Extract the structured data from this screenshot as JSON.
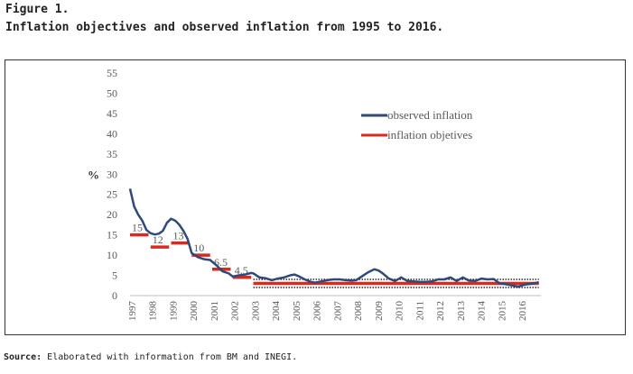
{
  "figure": {
    "label": "Figure 1.",
    "title": "Inflation objectives and observed inflation from 1995 to 2016.",
    "source_label": "Source:",
    "source_text": " Elaborated with information from BM and INEGI."
  },
  "chart_data": {
    "type": "line",
    "ylabel": "%",
    "ylim": [
      0,
      55
    ],
    "yticks": [
      0,
      5,
      10,
      15,
      20,
      25,
      30,
      35,
      40,
      45,
      50,
      55
    ],
    "xticks": [
      "1997",
      "1998",
      "1999",
      "2000",
      "2001",
      "2002",
      "2003",
      "2004",
      "2005",
      "2006",
      "2007",
      "2008",
      "2009",
      "2010",
      "2011",
      "2012",
      "2013",
      "2014",
      "2015",
      "2016"
    ],
    "legend": [
      "observed inflation",
      "inflation objetives"
    ],
    "legend_position": "top-right",
    "colors": {
      "observed": "#2e4a7d",
      "objectives": "#d62b1e",
      "band": "#000000"
    },
    "observed_inflation": {
      "name": "observed inflation",
      "x": [
        1997.0,
        1997.2,
        1997.4,
        1997.6,
        1997.8,
        1998.0,
        1998.2,
        1998.4,
        1998.6,
        1998.8,
        1999.0,
        1999.2,
        1999.4,
        1999.6,
        1999.8,
        2000.0,
        2000.3,
        2000.6,
        2000.9,
        2001.2,
        2001.5,
        2001.8,
        2002.0,
        2002.3,
        2002.6,
        2002.9,
        2003.0,
        2003.3,
        2003.6,
        2003.9,
        2004.2,
        2004.5,
        2004.8,
        2005.0,
        2005.2,
        2005.5,
        2005.8,
        2006.0,
        2006.3,
        2006.6,
        2006.9,
        2007.2,
        2007.5,
        2007.8,
        2008.0,
        2008.3,
        2008.6,
        2008.9,
        2009.1,
        2009.3,
        2009.6,
        2009.9,
        2010.2,
        2010.5,
        2010.8,
        2011.1,
        2011.4,
        2011.7,
        2012.0,
        2012.3,
        2012.6,
        2012.9,
        2013.2,
        2013.5,
        2013.8,
        2014.1,
        2014.4,
        2014.7,
        2015.0,
        2015.3,
        2015.6,
        2015.9,
        2016.2,
        2016.5,
        2016.9
      ],
      "values": [
        26.4,
        22.0,
        20.0,
        18.5,
        16.2,
        15.4,
        15.1,
        15.3,
        16.0,
        18.0,
        19.0,
        18.5,
        17.5,
        16.0,
        14.0,
        10.5,
        9.5,
        9.0,
        8.8,
        7.5,
        6.0,
        5.5,
        4.7,
        5.0,
        5.2,
        5.6,
        5.5,
        4.5,
        4.3,
        3.8,
        4.2,
        4.5,
        5.0,
        5.2,
        4.8,
        4.0,
        3.4,
        3.2,
        3.5,
        3.8,
        4.0,
        4.0,
        3.8,
        3.7,
        3.8,
        4.8,
        5.8,
        6.5,
        6.2,
        5.5,
        4.2,
        3.6,
        4.5,
        3.6,
        3.5,
        3.4,
        3.4,
        3.5,
        4.0,
        4.0,
        4.5,
        3.6,
        4.5,
        3.7,
        3.6,
        4.2,
        4.0,
        4.1,
        3.0,
        2.8,
        2.5,
        2.2,
        2.7,
        2.9,
        3.3
      ]
    },
    "inflation_objectives": {
      "name": "inflation objetives",
      "segments": [
        {
          "x0": 1997.0,
          "x1": 1997.9,
          "value": 15,
          "label": "15"
        },
        {
          "x0": 1998.0,
          "x1": 1998.9,
          "value": 12,
          "label": "12"
        },
        {
          "x0": 1999.0,
          "x1": 1999.9,
          "value": 13,
          "label": "13"
        },
        {
          "x0": 2000.0,
          "x1": 2000.9,
          "value": 10,
          "label": "10"
        },
        {
          "x0": 2001.0,
          "x1": 2001.9,
          "value": 6.5,
          "label": "6.5"
        },
        {
          "x0": 2002.0,
          "x1": 2002.9,
          "value": 4.5,
          "label": "4.5"
        },
        {
          "x0": 2003.0,
          "x1": 2016.9,
          "value": 3,
          "label": ""
        }
      ]
    },
    "tolerance_band": {
      "x0": 2003.0,
      "x1": 2016.9,
      "lower": 2,
      "upper": 4
    }
  }
}
